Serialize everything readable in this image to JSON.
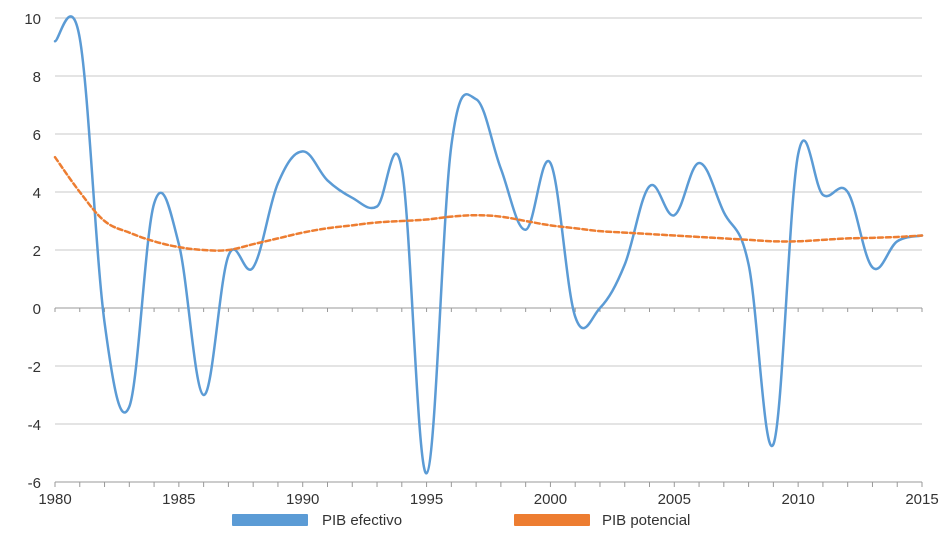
{
  "chart_data": {
    "type": "line",
    "title": "",
    "xlabel": "",
    "ylabel": "",
    "xlim": [
      1980,
      2015
    ],
    "ylim": [
      -6,
      10
    ],
    "x_ticks": [
      "1980",
      "1985",
      "1990",
      "1995",
      "2000",
      "2005",
      "2010",
      "2015"
    ],
    "x_tick_values": [
      1980,
      1985,
      1990,
      1995,
      2000,
      2005,
      2010,
      2015
    ],
    "y_ticks": [
      "10",
      "8",
      "6",
      "4",
      "2",
      "0",
      "-2",
      "-4",
      "-6"
    ],
    "y_tick_values": [
      10,
      8,
      6,
      4,
      2,
      0,
      -2,
      -4,
      -6
    ],
    "grid": true,
    "legend_position": "bottom-center",
    "x": [
      1980,
      1981,
      1982,
      1983,
      1984,
      1985,
      1986,
      1987,
      1988,
      1989,
      1990,
      1991,
      1992,
      1993,
      1994,
      1995,
      1996,
      1997,
      1998,
      1999,
      2000,
      2001,
      2002,
      2003,
      2004,
      2005,
      2006,
      2007,
      2008,
      2009,
      2010,
      2011,
      2012,
      2013,
      2014,
      2015
    ],
    "series": [
      {
        "name": "PIB efectivo",
        "color": "#5b9bd5",
        "style": "solid",
        "values": [
          9.2,
          9.3,
          -0.5,
          -3.4,
          3.6,
          2.2,
          -3.0,
          1.8,
          1.4,
          4.3,
          5.4,
          4.4,
          3.8,
          3.5,
          4.8,
          -5.7,
          5.6,
          7.2,
          4.8,
          2.7,
          5.0,
          -0.3,
          0.0,
          1.5,
          4.2,
          3.2,
          5.0,
          3.3,
          1.5,
          -4.7,
          5.3,
          3.9,
          4.0,
          1.4,
          2.3,
          2.5
        ]
      },
      {
        "name": "PIB potencial",
        "color": "#ed7d31",
        "style": "dashed",
        "values": [
          5.2,
          4.0,
          3.0,
          2.6,
          2.3,
          2.1,
          2.0,
          2.0,
          2.2,
          2.4,
          2.6,
          2.75,
          2.85,
          2.95,
          3.0,
          3.05,
          3.15,
          3.2,
          3.15,
          3.0,
          2.85,
          2.75,
          2.65,
          2.6,
          2.55,
          2.5,
          2.45,
          2.4,
          2.35,
          2.3,
          2.3,
          2.35,
          2.4,
          2.42,
          2.45,
          2.5
        ]
      }
    ]
  },
  "colors": {
    "grid": "#c8c8c8",
    "axis": "#999999"
  }
}
